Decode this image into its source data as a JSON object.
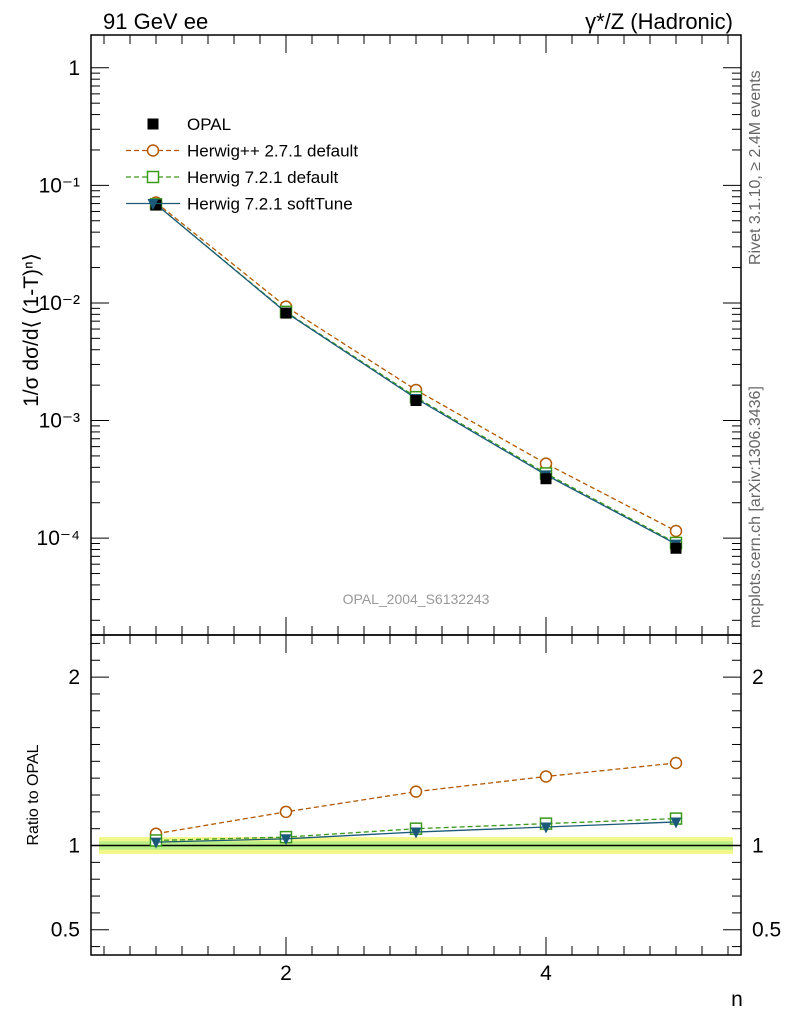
{
  "header": {
    "left_title": "91 GeV ee",
    "right_title": "γ*/Z (Hadronic)"
  },
  "side": {
    "rivet": "Rivet 3.1.10, ≥ 2.4M events",
    "mcplots": "mcplots.cern.ch [arXiv:1306.3436]"
  },
  "watermark": "OPAL_2004_S6132243",
  "chart_data": {
    "type": "line",
    "x": [
      1,
      2,
      3,
      4,
      5
    ],
    "xlabel": "n",
    "xlim": [
      0.5,
      5.5
    ],
    "x_ticks": [
      2,
      4
    ],
    "main": {
      "ylabel": "1/σ dσ/d⟨ (1-T)ⁿ⟩",
      "yscale": "log",
      "ylim": [
        1.5e-05,
        1.9
      ],
      "y_ticks": [
        {
          "value": 1,
          "label": "1"
        },
        {
          "value": 0.1,
          "label": "10⁻¹"
        },
        {
          "value": 0.01,
          "label": "10⁻²"
        },
        {
          "value": 0.001,
          "label": "10⁻³"
        },
        {
          "value": 0.0001,
          "label": "10⁻⁴"
        }
      ],
      "series": [
        {
          "name": "OPAL",
          "color": "#000000",
          "marker": "square-filled",
          "line": "none",
          "values": [
            0.068,
            0.0082,
            0.00148,
            0.00032,
            8.2e-05
          ]
        },
        {
          "name": "Herwig++ 2.7.1 default",
          "color": "#b35900",
          "marker": "circle-open",
          "line": "dashed",
          "values": [
            0.0715,
            0.0093,
            0.00182,
            0.00043,
            0.000115
          ]
        },
        {
          "name": "Herwig 7.2.1 default",
          "color": "#3a9a1a",
          "marker": "square-open",
          "line": "dashed",
          "values": [
            0.069,
            0.0084,
            0.00158,
            0.000355,
            9.1e-05
          ]
        },
        {
          "name": "Herwig 7.2.1 softTune",
          "color": "#1a5a78",
          "marker": "triangle-down-filled",
          "line": "solid",
          "values": [
            0.069,
            0.0083,
            0.00154,
            0.000345,
            8.9e-05
          ]
        }
      ]
    },
    "ratio": {
      "ylabel": "Ratio to OPAL",
      "ylim": [
        0.35,
        2.25
      ],
      "y_ticks": [
        {
          "value": 0.5,
          "label": "0.5"
        },
        {
          "value": 1,
          "label": "1"
        },
        {
          "value": 2,
          "label": "2"
        }
      ],
      "series": [
        {
          "name": "Herwig++ 2.7.1 default",
          "values": [
            1.07,
            1.2,
            1.32,
            1.41,
            1.49
          ]
        },
        {
          "name": "Herwig 7.2.1 default",
          "values": [
            1.03,
            1.05,
            1.1,
            1.13,
            1.16
          ]
        },
        {
          "name": "Herwig 7.2.1 softTune",
          "values": [
            1.02,
            1.04,
            1.08,
            1.11,
            1.14
          ]
        }
      ]
    }
  }
}
